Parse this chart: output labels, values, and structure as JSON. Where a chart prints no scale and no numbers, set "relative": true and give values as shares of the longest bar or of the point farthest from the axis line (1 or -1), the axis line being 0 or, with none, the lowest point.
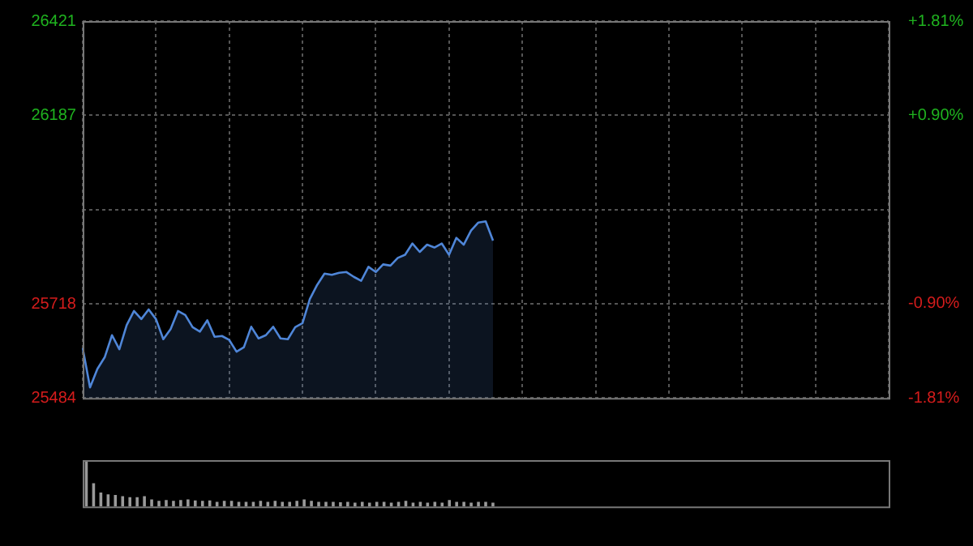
{
  "chart_data": [
    {
      "type": "area",
      "categories": [
        null,
        null,
        null,
        null,
        null,
        null,
        null,
        null,
        null,
        null,
        null,
        null,
        null,
        null,
        null,
        null,
        null,
        null,
        null,
        null,
        null,
        null,
        null,
        null,
        null,
        null,
        null,
        null,
        null,
        null,
        null,
        null,
        null,
        null,
        null,
        null,
        null,
        null,
        null,
        null,
        null,
        null,
        null,
        null,
        null,
        null,
        null,
        null,
        null,
        null,
        null,
        null,
        null,
        null,
        null,
        null,
        null,
        null,
        null,
        null,
        null,
        null,
        null,
        null,
        null,
        null,
        null,
        null,
        null,
        null,
        null,
        null,
        null,
        null,
        null,
        null,
        null,
        null,
        null,
        null,
        null,
        null,
        null,
        null,
        null,
        null,
        null,
        null,
        null,
        null,
        null,
        null,
        null,
        null,
        null,
        null,
        null,
        null,
        null,
        null,
        null,
        null,
        null,
        null,
        null,
        null,
        null,
        null,
        null,
        null,
        null
      ],
      "series": [
        {
          "color": "#4f86d8",
          "values": [
            25608,
            25510,
            25556,
            25585,
            25640,
            25605,
            25665,
            25700,
            25680,
            25704,
            25680,
            25630,
            25655,
            25700,
            25690,
            25660,
            25649,
            25677,
            25636,
            25638,
            25628,
            25599,
            25610,
            25661,
            25632,
            25640,
            25661,
            25632,
            25630,
            25660,
            25670,
            25730,
            25765,
            25793,
            25790,
            25795,
            25797,
            25785,
            25775,
            25810,
            25797,
            25816,
            25813,
            25832,
            25840,
            25868,
            25847,
            25865,
            25858,
            25868,
            25840,
            25882,
            25865,
            25900,
            25920,
            25923,
            25875,
            null,
            null,
            null,
            null,
            null,
            null,
            null,
            null,
            null,
            null,
            null,
            null,
            null,
            null,
            null,
            null,
            null,
            null,
            null,
            null,
            null,
            null,
            null,
            null,
            null,
            null,
            null,
            null,
            null,
            null,
            null,
            null,
            null,
            null,
            null,
            null,
            null,
            null,
            null,
            null,
            null,
            null,
            null,
            null,
            null,
            null,
            null,
            null,
            null,
            null,
            null,
            null,
            null,
            null
          ]
        }
      ],
      "ylim": [
        25484,
        26421
      ],
      "yticks": [
        25484,
        25718,
        {
          "value": 25952,
          "label": null
        },
        26187,
        26421
      ],
      "y2lim": [
        -1.81,
        1.81
      ],
      "y2ticks": [
        {
          "value": -1.81,
          "label": "-1.81%"
        },
        {
          "value": -0.9,
          "label": "-0.90%"
        },
        {
          "value": 0,
          "label": null
        },
        {
          "value": 0.9,
          "label": "+0.90%"
        },
        {
          "value": 1.81,
          "label": "+1.81%"
        }
      ],
      "grid": true
    },
    {
      "type": "bar",
      "relative": true,
      "categories": [
        null,
        null,
        null,
        null,
        null,
        null,
        null,
        null,
        null,
        null,
        null,
        null,
        null,
        null,
        null,
        null,
        null,
        null,
        null,
        null,
        null,
        null,
        null,
        null,
        null,
        null,
        null,
        null,
        null,
        null,
        null,
        null,
        null,
        null,
        null,
        null,
        null,
        null,
        null,
        null,
        null,
        null,
        null,
        null,
        null,
        null,
        null,
        null,
        null,
        null,
        null,
        null,
        null,
        null,
        null,
        null,
        null,
        null,
        null,
        null,
        null,
        null,
        null,
        null,
        null,
        null,
        null,
        null,
        null,
        null,
        null,
        null,
        null,
        null,
        null,
        null,
        null,
        null,
        null,
        null,
        null,
        null,
        null,
        null,
        null,
        null,
        null,
        null,
        null,
        null,
        null,
        null,
        null,
        null,
        null,
        null,
        null,
        null,
        null,
        null,
        null,
        null,
        null,
        null,
        null,
        null,
        null,
        null,
        null,
        null,
        null
      ],
      "series": [
        {
          "color": "#9a9a9a",
          "values": [
            1,
            0.5,
            0.3,
            0.26,
            0.25,
            0.22,
            0.2,
            0.2,
            0.22,
            0.15,
            0.12,
            0.14,
            0.12,
            0.14,
            0.15,
            0.13,
            0.12,
            0.13,
            0.1,
            0.12,
            0.12,
            0.1,
            0.1,
            0.1,
            0.12,
            0.1,
            0.12,
            0.1,
            0.1,
            0.12,
            0.15,
            0.12,
            0.1,
            0.1,
            0.1,
            0.09,
            0.1,
            0.08,
            0.1,
            0.08,
            0.1,
            0.1,
            0.08,
            0.1,
            0.12,
            0.08,
            0.1,
            0.08,
            0.1,
            0.08,
            0.14,
            0.1,
            0.1,
            0.08,
            0.1,
            0.1,
            0.08,
            null,
            null,
            null,
            null,
            null,
            null,
            null,
            null,
            null,
            null,
            null,
            null,
            null,
            null,
            null,
            null,
            null,
            null,
            null,
            null,
            null,
            null,
            null,
            null,
            null,
            null,
            null,
            null,
            null,
            null,
            null,
            null,
            null,
            null,
            null,
            null,
            null,
            null,
            null,
            null,
            null,
            null,
            null,
            null,
            null,
            null,
            null,
            null,
            null,
            null,
            null,
            null,
            null,
            null
          ]
        }
      ]
    }
  ]
}
